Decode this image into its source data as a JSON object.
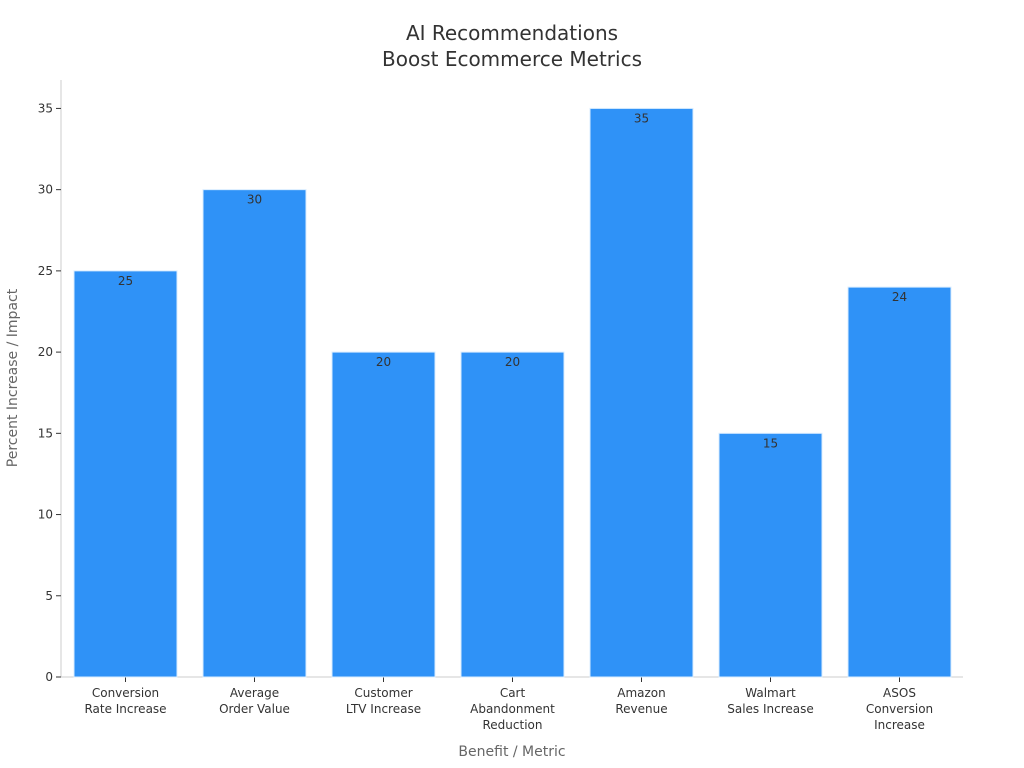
{
  "chart_data": {
    "type": "bar",
    "title": "AI Recommendations\nBoost Ecommerce Metrics",
    "xlabel": "Benefit / Metric",
    "ylabel": "Percent Increase / Impact",
    "categories": [
      "Conversion\nRate Increase",
      "Average\nOrder Value",
      "Customer\nLTV Increase",
      "Cart\nAbandonment\nReduction",
      "Amazon\nRevenue",
      "Walmart\nSales Increase",
      "ASOS\nConversion\nIncrease"
    ],
    "values": [
      25,
      30,
      20,
      20,
      35,
      15,
      24
    ],
    "data_labels": [
      "25",
      "30",
      "20",
      "20",
      "35",
      "15",
      "24"
    ],
    "yticks": [
      0,
      5,
      10,
      15,
      20,
      25,
      30,
      35
    ],
    "ylim": [
      0,
      36.75
    ],
    "grid": false,
    "bar_color": "#2f92f7",
    "bar_edge_color": "#d9ecff",
    "axis_color": "#cccccc",
    "text_color": "#333333",
    "label_color": "#666666"
  }
}
